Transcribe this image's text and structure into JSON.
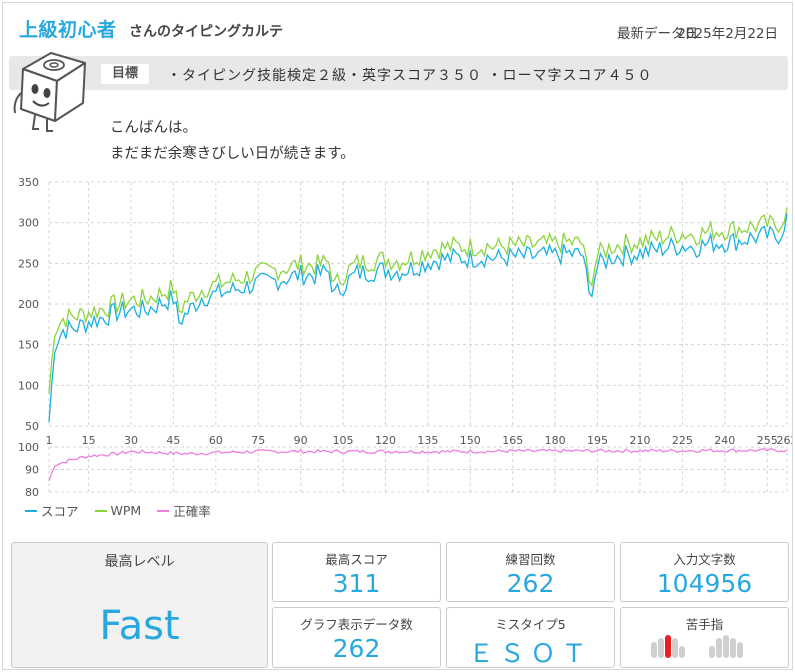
{
  "header": {
    "rank": "上級初心者",
    "rank_suffix": "さんのタイピングカルテ",
    "updated_label": "最新データ日",
    "updated_date": "2025年2月22日"
  },
  "goal": {
    "tag": "目標",
    "text": "・タイピング技能検定２級・英字スコア３５０ ・ローマ字スコア４５０"
  },
  "greeting": {
    "line1": "こんばんは。",
    "line2": "まだまだ余寒きびしい日が続きます。"
  },
  "chart_data": [
    {
      "type": "line",
      "title": "",
      "xlabel": "",
      "ylabel": "",
      "x_ticks": [
        1,
        15,
        30,
        45,
        60,
        75,
        90,
        105,
        120,
        135,
        150,
        165,
        180,
        195,
        210,
        225,
        240,
        255,
        262
      ],
      "y_ticks": [
        50,
        100,
        150,
        200,
        250,
        300,
        350
      ],
      "ylim": [
        50,
        350
      ],
      "xlim": [
        1,
        262
      ],
      "grid": true,
      "series": [
        {
          "name": "スコア",
          "color": "#1ab0e0",
          "anchors": [
            [
              1,
              55
            ],
            [
              3,
              150
            ],
            [
              6,
              168
            ],
            [
              10,
              170
            ],
            [
              15,
              178
            ],
            [
              20,
              183
            ],
            [
              25,
              190
            ],
            [
              30,
              193
            ],
            [
              35,
              192
            ],
            [
              40,
              200
            ],
            [
              45,
              207
            ],
            [
              47,
              178
            ],
            [
              50,
              190
            ],
            [
              55,
              208
            ],
            [
              60,
              212
            ],
            [
              65,
              216
            ],
            [
              70,
              221
            ],
            [
              75,
              225
            ],
            [
              80,
              228
            ],
            [
              85,
              232
            ],
            [
              90,
              236
            ],
            [
              95,
              235
            ],
            [
              100,
              240
            ],
            [
              102,
              210
            ],
            [
              105,
              223
            ],
            [
              110,
              238
            ],
            [
              115,
              240
            ],
            [
              120,
              242
            ],
            [
              125,
              240
            ],
            [
              130,
              245
            ],
            [
              135,
              252
            ],
            [
              140,
              255
            ],
            [
              145,
              257
            ],
            [
              150,
              256
            ],
            [
              155,
              258
            ],
            [
              160,
              256
            ],
            [
              165,
              258
            ],
            [
              170,
              258
            ],
            [
              175,
              259
            ],
            [
              180,
              260
            ],
            [
              185,
              262
            ],
            [
              190,
              260
            ],
            [
              192,
              208
            ],
            [
              195,
              247
            ],
            [
              200,
              258
            ],
            [
              205,
              260
            ],
            [
              210,
              263
            ],
            [
              215,
              266
            ],
            [
              220,
              270
            ],
            [
              225,
              272
            ],
            [
              230,
              270
            ],
            [
              235,
              275
            ],
            [
              240,
              276
            ],
            [
              245,
              278
            ],
            [
              250,
              282
            ],
            [
              255,
              284
            ],
            [
              258,
              282
            ],
            [
              260,
              288
            ],
            [
              262,
              311
            ]
          ]
        },
        {
          "name": "WPM",
          "color": "#8cd43c",
          "anchors": [
            [
              1,
              90
            ],
            [
              3,
              170
            ],
            [
              6,
              182
            ],
            [
              10,
              185
            ],
            [
              15,
              190
            ],
            [
              20,
              194
            ],
            [
              25,
              200
            ],
            [
              30,
              205
            ],
            [
              35,
              206
            ],
            [
              40,
              212
            ],
            [
              45,
              220
            ],
            [
              47,
              192
            ],
            [
              50,
              205
            ],
            [
              55,
              218
            ],
            [
              60,
              224
            ],
            [
              65,
              228
            ],
            [
              70,
              233
            ],
            [
              75,
              238
            ],
            [
              80,
              241
            ],
            [
              85,
              245
            ],
            [
              90,
              249
            ],
            [
              95,
              247
            ],
            [
              100,
              252
            ],
            [
              102,
              222
            ],
            [
              105,
              236
            ],
            [
              110,
              250
            ],
            [
              115,
              253
            ],
            [
              120,
              255
            ],
            [
              125,
              253
            ],
            [
              130,
              258
            ],
            [
              135,
              266
            ],
            [
              140,
              269
            ],
            [
              145,
              271
            ],
            [
              150,
              270
            ],
            [
              155,
              272
            ],
            [
              160,
              270
            ],
            [
              165,
              272
            ],
            [
              170,
              272
            ],
            [
              175,
              273
            ],
            [
              180,
              274
            ],
            [
              185,
              276
            ],
            [
              190,
              274
            ],
            [
              192,
              222
            ],
            [
              195,
              260
            ],
            [
              200,
              271
            ],
            [
              205,
              274
            ],
            [
              210,
              277
            ],
            [
              215,
              280
            ],
            [
              220,
              284
            ],
            [
              225,
              287
            ],
            [
              230,
              285
            ],
            [
              235,
              290
            ],
            [
              240,
              291
            ],
            [
              245,
              293
            ],
            [
              250,
              296
            ],
            [
              255,
              298
            ],
            [
              258,
              296
            ],
            [
              260,
              302
            ],
            [
              262,
              318
            ]
          ]
        }
      ]
    },
    {
      "type": "line",
      "title": "",
      "x_ticks": [
        1,
        15,
        30,
        45,
        60,
        75,
        90,
        105,
        120,
        135,
        150,
        165,
        180,
        195,
        210,
        225,
        240,
        255,
        262
      ],
      "y_ticks": [
        80,
        90,
        100
      ],
      "ylim": [
        80,
        100
      ],
      "xlim": [
        1,
        262
      ],
      "grid": true,
      "series": [
        {
          "name": "正確率",
          "color": "#f07de0",
          "anchors": [
            [
              1,
              85
            ],
            [
              3,
              92
            ],
            [
              8,
              94
            ],
            [
              15,
              96
            ],
            [
              25,
              97
            ],
            [
              30,
              98
            ],
            [
              40,
              97.5
            ],
            [
              50,
              97
            ],
            [
              60,
              97.5
            ],
            [
              75,
              98
            ],
            [
              90,
              98
            ],
            [
              105,
              98
            ],
            [
              120,
              98
            ],
            [
              135,
              98
            ],
            [
              150,
              98
            ],
            [
              165,
              98.2
            ],
            [
              180,
              98.2
            ],
            [
              195,
              98.3
            ],
            [
              210,
              98.3
            ],
            [
              225,
              98.4
            ],
            [
              240,
              98.5
            ],
            [
              255,
              98.5
            ],
            [
              262,
              98.6
            ]
          ]
        }
      ]
    }
  ],
  "legend": {
    "score": "スコア",
    "wpm": "WPM",
    "accuracy": "正確率"
  },
  "stats": {
    "level_label": "最高レベル",
    "level_value": "Fast",
    "max_score_label": "最高スコア",
    "max_score_value": "311",
    "practice_count_label": "練習回数",
    "practice_count_value": "262",
    "chars_label": "入力文字数",
    "chars_value": "104956",
    "graph_count_label": "グラフ表示データ数",
    "graph_count_value": "262",
    "miss5_label": "ミスタイプ5",
    "miss5_value": "ＥＳＯＴ",
    "weak_finger_label": "苦手指",
    "weak_finger_highlight": "left-middle"
  },
  "colors": {
    "accent": "#29a8e0",
    "score": "#1ab0e0",
    "wpm": "#8cd43c",
    "accuracy": "#f07de0",
    "weak_finger": "#e82020"
  }
}
